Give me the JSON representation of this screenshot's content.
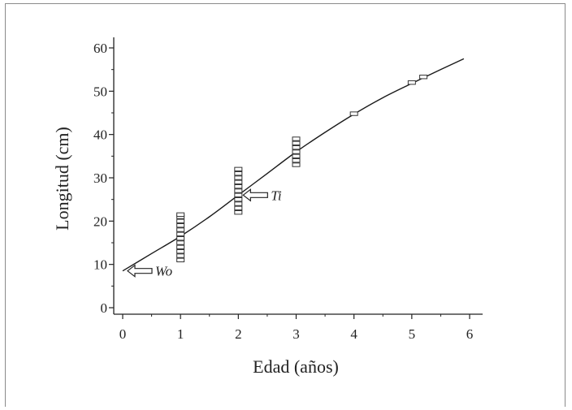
{
  "chart_data": {
    "type": "scatter",
    "xlabel": "Edad (años)",
    "ylabel": "Longitud (cm)",
    "xlim": [
      0,
      6
    ],
    "ylim": [
      0,
      60
    ],
    "x_ticks": [
      0,
      1,
      2,
      3,
      4,
      5,
      6
    ],
    "y_ticks": [
      0,
      10,
      20,
      30,
      40,
      50,
      60
    ],
    "grid": false,
    "curve": {
      "x": [
        0,
        0.5,
        1,
        1.5,
        2,
        2.5,
        3,
        3.5,
        4,
        4.5,
        5,
        5.5,
        5.9
      ],
      "y": [
        8.5,
        12.5,
        16.5,
        21,
        26,
        31,
        36,
        40.5,
        44.7,
        48.5,
        51.8,
        55,
        57.5
      ]
    },
    "observations": [
      {
        "age": 1,
        "lengths": [
          11,
          12,
          13,
          14,
          15,
          16,
          17,
          18,
          19,
          20,
          21,
          21.5
        ]
      },
      {
        "age": 2,
        "lengths": [
          22,
          23,
          24,
          25,
          26,
          27,
          28,
          29,
          30,
          31,
          32
        ]
      },
      {
        "age": 3,
        "lengths": [
          33,
          34,
          35,
          36,
          37,
          38,
          39
        ]
      },
      {
        "age": 4,
        "lengths": [
          44.8
        ]
      },
      {
        "age": 5,
        "lengths": [
          52
        ]
      },
      {
        "age": 5.2,
        "lengths": [
          53.3
        ]
      }
    ],
    "annotations": [
      {
        "text": "Wo",
        "x": 0,
        "y": 8.5
      },
      {
        "text": "Ti",
        "x": 2,
        "y": 26
      }
    ]
  },
  "colors": {
    "curve": "#1a1a1a",
    "marker": "#333333",
    "axis": "#222222",
    "frame": "#8a8a8a"
  }
}
